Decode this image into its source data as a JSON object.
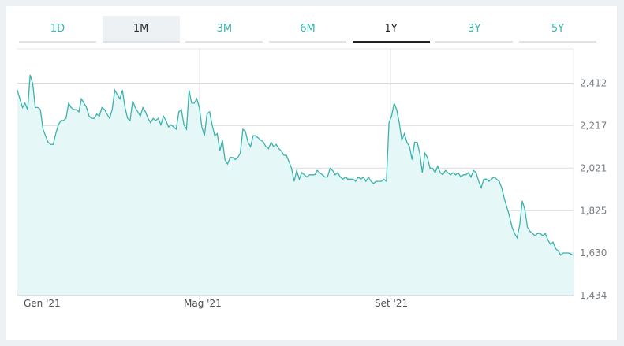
{
  "tabs": [
    "1D",
    "1M",
    "3M",
    "6M",
    "1Y",
    "3Y",
    "5Y"
  ],
  "chart_data": {
    "type": "area",
    "y_ticks": [
      1434,
      1630,
      1825,
      2021,
      2217,
      2412
    ],
    "y_tick_labels": [
      "1,434",
      "1,630",
      "1,825",
      "2,021",
      "2,217",
      "2,412"
    ],
    "x_ticks": [
      "Gen '21",
      "Mag '21",
      "Set '21"
    ],
    "ylim": [
      1434,
      2570
    ],
    "grid": true,
    "colors": {
      "line": "#3ab3ac",
      "fill": "#e6f7f8"
    },
    "series": [
      {
        "values": [
          2380,
          2340,
          2300,
          2320,
          2290,
          2450,
          2410,
          2300,
          2300,
          2290,
          2200,
          2170,
          2140,
          2130,
          2130,
          2180,
          2220,
          2240,
          2240,
          2250,
          2320,
          2300,
          2290,
          2290,
          2280,
          2340,
          2320,
          2300,
          2260,
          2250,
          2250,
          2270,
          2260,
          2300,
          2290,
          2270,
          2250,
          2290,
          2380,
          2360,
          2340,
          2380,
          2300,
          2250,
          2240,
          2330,
          2300,
          2280,
          2260,
          2300,
          2280,
          2250,
          2230,
          2250,
          2240,
          2250,
          2220,
          2260,
          2240,
          2210,
          2220,
          2210,
          2200,
          2280,
          2290,
          2220,
          2200,
          2380,
          2320,
          2320,
          2340,
          2300,
          2210,
          2170,
          2270,
          2280,
          2220,
          2170,
          2180,
          2100,
          2150,
          2060,
          2040,
          2070,
          2070,
          2060,
          2070,
          2090,
          2200,
          2190,
          2140,
          2120,
          2170,
          2170,
          2160,
          2150,
          2140,
          2120,
          2110,
          2140,
          2120,
          2130,
          2110,
          2100,
          2080,
          2080,
          2050,
          2020,
          1960,
          2010,
          1970,
          2000,
          1990,
          1980,
          1990,
          1990,
          1990,
          2010,
          2000,
          1990,
          1980,
          1980,
          2020,
          2010,
          1990,
          2000,
          1980,
          1970,
          1980,
          1970,
          1970,
          1970,
          1960,
          1980,
          1970,
          1980,
          1960,
          1980,
          1960,
          1950,
          1960,
          1960,
          1960,
          1970,
          1960,
          2230,
          2260,
          2320,
          2290,
          2230,
          2150,
          2180,
          2140,
          2120,
          2060,
          2140,
          2140,
          2090,
          2000,
          2090,
          2070,
          2020,
          2020,
          2000,
          2030,
          2000,
          1990,
          2010,
          2000,
          1990,
          2000,
          1990,
          2000,
          1980,
          1990,
          1990,
          2000,
          1980,
          2010,
          2000,
          1960,
          1930,
          1970,
          1970,
          1960,
          1970,
          1980,
          1970,
          1960,
          1930,
          1880,
          1840,
          1800,
          1750,
          1720,
          1700,
          1760,
          1870,
          1830,
          1750,
          1730,
          1720,
          1710,
          1720,
          1720,
          1710,
          1720,
          1690,
          1670,
          1680,
          1650,
          1640,
          1620,
          1630,
          1630,
          1630,
          1625,
          1620
        ]
      }
    ]
  }
}
